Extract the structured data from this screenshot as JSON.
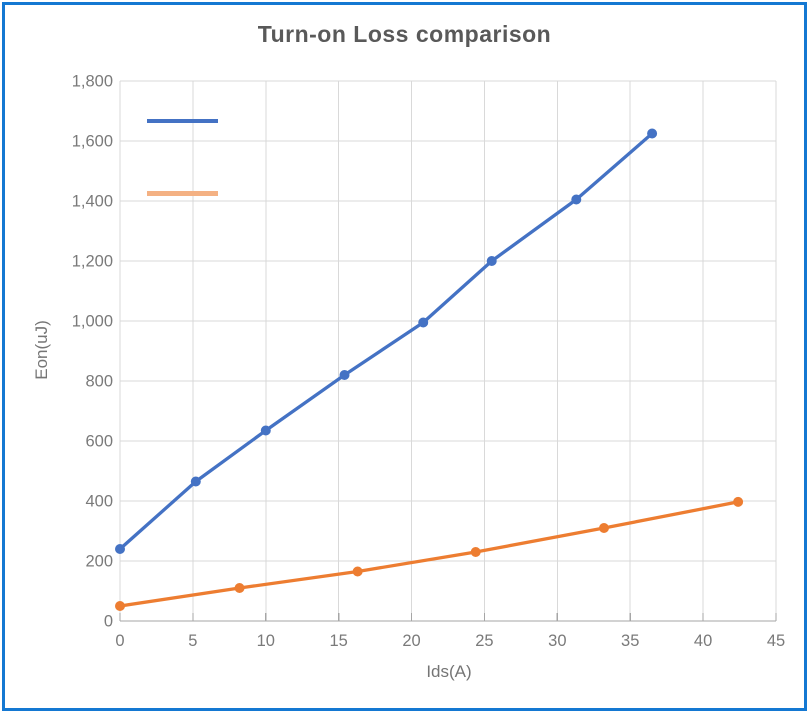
{
  "window": {
    "frame_color": "#1478d2",
    "background_color": "#ffffff"
  },
  "styles": {
    "title_color": "#595959",
    "axis_title_color": "#757575",
    "tick_label_color": "#7a7a7a",
    "gridline_color": "#d9d9d9",
    "axis_line_color": "#a6a6a6"
  },
  "chart_data": {
    "type": "line",
    "title": "Turn-on Loss comparison",
    "xlabel": "Ids(A)",
    "ylabel": "Eon(uJ)",
    "xlim": [
      0,
      45
    ],
    "ylim": [
      0,
      1800
    ],
    "grid": true,
    "legend_position": "top-left-inside",
    "x_ticks": [
      0,
      5,
      10,
      15,
      20,
      25,
      30,
      35,
      40,
      45
    ],
    "x_tick_labels": [
      "0",
      "5",
      "10",
      "15",
      "20",
      "25",
      "30",
      "35",
      "40",
      "45"
    ],
    "y_ticks": [
      0,
      200,
      400,
      600,
      800,
      1000,
      1200,
      1400,
      1600,
      1800
    ],
    "y_tick_labels": [
      "0",
      "200",
      "400",
      "600",
      "800",
      "1,000",
      "1,200",
      "1,400",
      "1,600",
      "1,800"
    ],
    "series": [
      {
        "name": "",
        "color": "#4472C4",
        "legend_swatch_color": "#4472C4",
        "marker": "circle",
        "points": [
          {
            "x": 0,
            "y": 240
          },
          {
            "x": 5.2,
            "y": 465
          },
          {
            "x": 10,
            "y": 635
          },
          {
            "x": 15.4,
            "y": 820
          },
          {
            "x": 20.8,
            "y": 995
          },
          {
            "x": 25.5,
            "y": 1200
          },
          {
            "x": 31.3,
            "y": 1405
          },
          {
            "x": 36.5,
            "y": 1625
          }
        ]
      },
      {
        "name": "",
        "color": "#ED7D31",
        "legend_swatch_color": "#F4B183",
        "marker": "circle",
        "points": [
          {
            "x": 0,
            "y": 50
          },
          {
            "x": 8.2,
            "y": 110
          },
          {
            "x": 16.3,
            "y": 165
          },
          {
            "x": 24.4,
            "y": 230
          },
          {
            "x": 33.2,
            "y": 310
          },
          {
            "x": 42.4,
            "y": 397
          }
        ]
      }
    ]
  }
}
